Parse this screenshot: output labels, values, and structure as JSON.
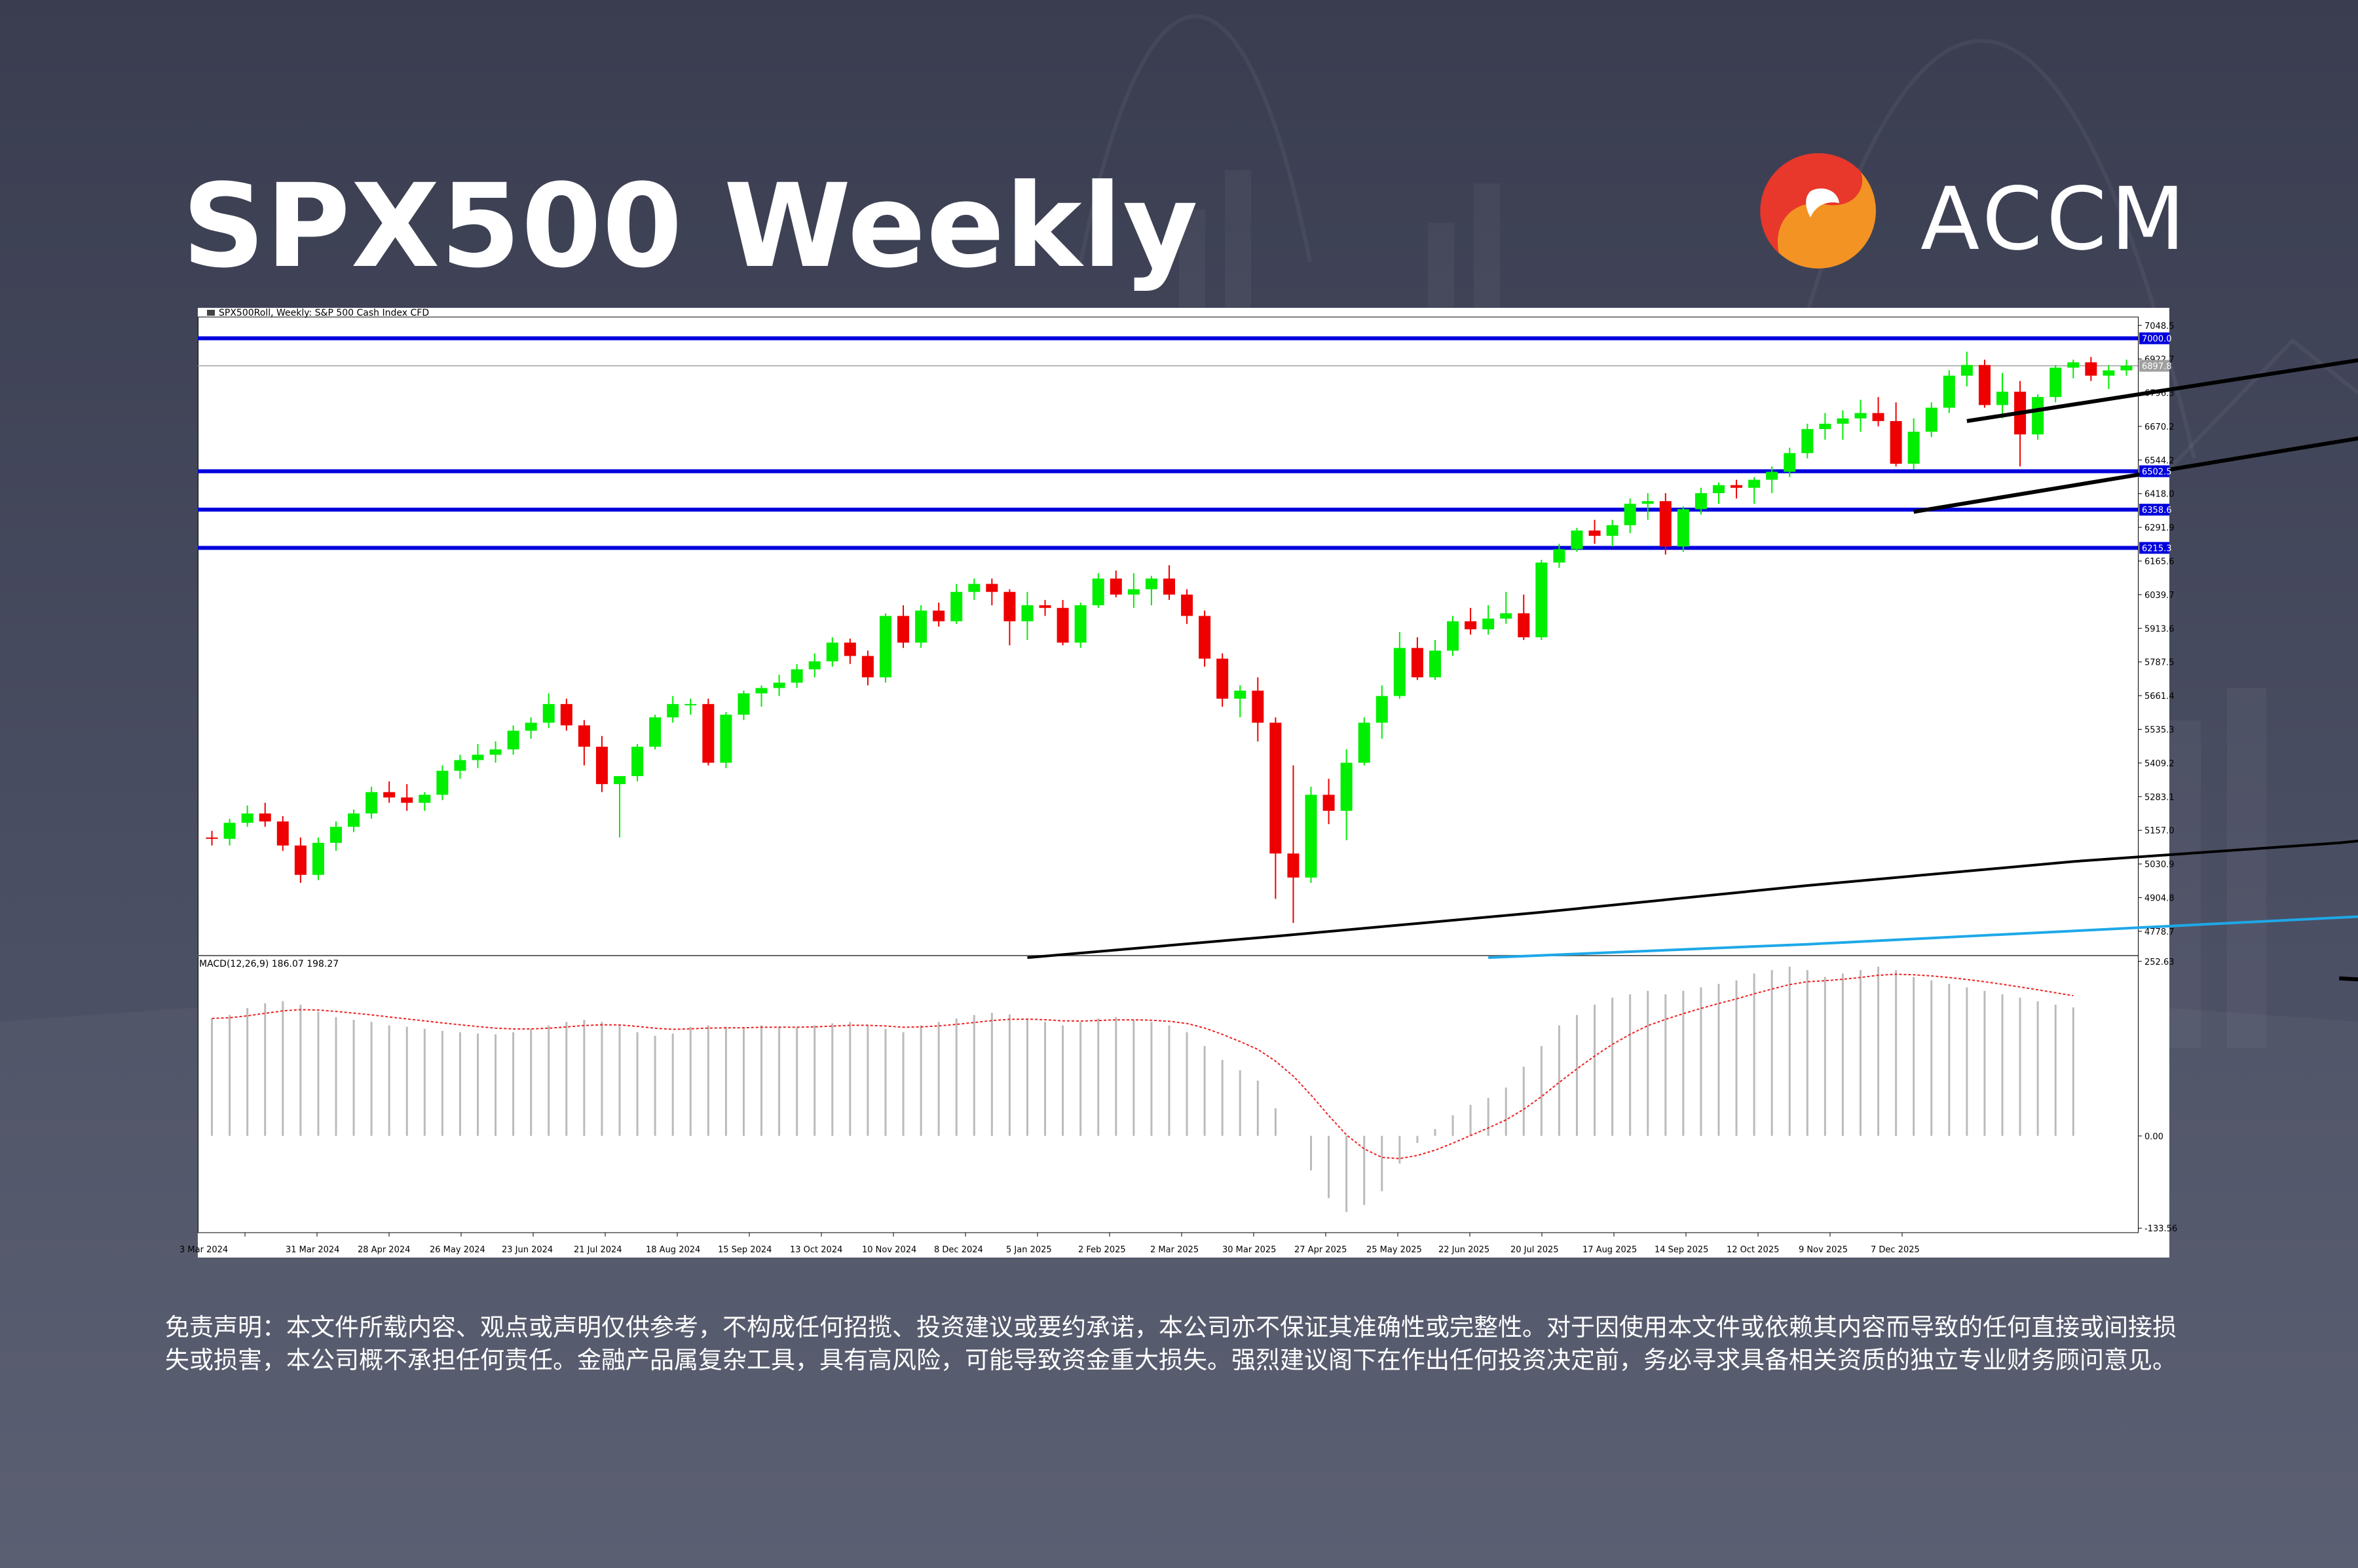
{
  "title": "SPX500 Weekly",
  "brand": {
    "name": "ACCM",
    "colors": {
      "red": "#e8372b",
      "orange": "#f39323"
    }
  },
  "chart_header": "SPX500Roll, Weekly:  S&P 500 Cash Index CFD",
  "macd_header": "MACD(12,26,9) 186.07 198.27",
  "colors": {
    "bull": "#00ee00",
    "bear": "#ee0000",
    "level_line": "#0000dd",
    "ma_long": "#000000",
    "ma_longer": "#1ea8e8",
    "signal": "#ee2222",
    "histogram": "#bbbbbb"
  },
  "chart_data": {
    "type": "candlestick",
    "price_axis": {
      "ylim": [
        4690,
        7070
      ],
      "ticks": [
        "7048.5",
        "6922.7",
        "6796.3",
        "6670.2",
        "6544.2",
        "6418.0",
        "6291.9",
        "6165.6",
        "6039.7",
        "5913.6",
        "5787.5",
        "5661.4",
        "5535.3",
        "5409.2",
        "5283.1",
        "5157.0",
        "5030.9",
        "4904.8",
        "4778.7"
      ]
    },
    "x_axis_labels": [
      "3 Mar 2024",
      "31 Mar 2024",
      "28 Apr 2024",
      "26 May 2024",
      "23 Jun 2024",
      "21 Jul 2024",
      "18 Aug 2024",
      "15 Sep 2024",
      "13 Oct 2024",
      "10 Nov 2024",
      "8 Dec 2024",
      "5 Jan 2025",
      "2 Feb 2025",
      "2 Mar 2025",
      "30 Mar 2025",
      "27 Apr 2025",
      "25 May 2025",
      "22 Jun 2025",
      "20 Jul 2025",
      "17 Aug 2025",
      "14 Sep 2025",
      "12 Oct 2025",
      "9 Nov 2025",
      "7 Dec 2025"
    ],
    "horizontal_levels": [
      {
        "value": 7000,
        "label": "7000.0"
      },
      {
        "value": 6502,
        "label": "6502.5"
      },
      {
        "value": 6358,
        "label": "6358.6"
      },
      {
        "value": 6215,
        "label": "6215.3"
      }
    ],
    "current_price": {
      "value": 6897,
      "label": "6897.8"
    },
    "ohlc": [
      [
        5130,
        5155,
        5100,
        5125
      ],
      [
        5125,
        5200,
        5100,
        5185
      ],
      [
        5185,
        5250,
        5170,
        5220
      ],
      [
        5220,
        5260,
        5170,
        5190
      ],
      [
        5190,
        5210,
        5080,
        5100
      ],
      [
        5100,
        5130,
        4960,
        4990
      ],
      [
        4990,
        5130,
        4970,
        5110
      ],
      [
        5110,
        5190,
        5080,
        5170
      ],
      [
        5170,
        5235,
        5150,
        5220
      ],
      [
        5220,
        5320,
        5200,
        5300
      ],
      [
        5300,
        5340,
        5260,
        5280
      ],
      [
        5280,
        5330,
        5230,
        5260
      ],
      [
        5260,
        5300,
        5230,
        5290
      ],
      [
        5290,
        5400,
        5270,
        5380
      ],
      [
        5380,
        5440,
        5350,
        5420
      ],
      [
        5420,
        5480,
        5390,
        5440
      ],
      [
        5440,
        5490,
        5410,
        5460
      ],
      [
        5460,
        5550,
        5440,
        5530
      ],
      [
        5530,
        5580,
        5500,
        5560
      ],
      [
        5560,
        5670,
        5540,
        5630
      ],
      [
        5630,
        5650,
        5530,
        5550
      ],
      [
        5550,
        5570,
        5400,
        5470
      ],
      [
        5470,
        5510,
        5300,
        5330
      ],
      [
        5330,
        5360,
        5130,
        5360
      ],
      [
        5360,
        5480,
        5340,
        5470
      ],
      [
        5470,
        5590,
        5460,
        5580
      ],
      [
        5580,
        5660,
        5560,
        5630
      ],
      [
        5630,
        5650,
        5590,
        5630
      ],
      [
        5630,
        5650,
        5400,
        5410
      ],
      [
        5410,
        5600,
        5390,
        5590
      ],
      [
        5590,
        5680,
        5570,
        5670
      ],
      [
        5670,
        5700,
        5620,
        5690
      ],
      [
        5690,
        5740,
        5660,
        5710
      ],
      [
        5710,
        5780,
        5690,
        5760
      ],
      [
        5760,
        5820,
        5730,
        5790
      ],
      [
        5790,
        5880,
        5770,
        5860
      ],
      [
        5860,
        5875,
        5780,
        5810
      ],
      [
        5810,
        5830,
        5700,
        5730
      ],
      [
        5730,
        5970,
        5710,
        5960
      ],
      [
        5960,
        6000,
        5840,
        5860
      ],
      [
        5860,
        6000,
        5840,
        5980
      ],
      [
        5980,
        6010,
        5920,
        5940
      ],
      [
        5940,
        6080,
        5930,
        6050
      ],
      [
        6050,
        6100,
        6020,
        6080
      ],
      [
        6080,
        6100,
        6000,
        6050
      ],
      [
        6050,
        6060,
        5850,
        5940
      ],
      [
        5940,
        6050,
        5870,
        6000
      ],
      [
        6000,
        6020,
        5960,
        5990
      ],
      [
        5990,
        6020,
        5850,
        5860
      ],
      [
        5860,
        6010,
        5840,
        6000
      ],
      [
        6000,
        6120,
        5990,
        6100
      ],
      [
        6100,
        6130,
        6030,
        6040
      ],
      [
        6040,
        6120,
        5990,
        6060
      ],
      [
        6060,
        6110,
        6000,
        6100
      ],
      [
        6100,
        6150,
        6020,
        6040
      ],
      [
        6040,
        6060,
        5930,
        5960
      ],
      [
        5960,
        5980,
        5770,
        5800
      ],
      [
        5800,
        5820,
        5620,
        5650
      ],
      [
        5650,
        5700,
        5580,
        5680
      ],
      [
        5680,
        5730,
        5490,
        5560
      ],
      [
        5560,
        5580,
        4900,
        5070
      ],
      [
        5070,
        5400,
        4810,
        4980
      ],
      [
        4980,
        5320,
        4960,
        5290
      ],
      [
        5290,
        5350,
        5180,
        5230
      ],
      [
        5230,
        5460,
        5120,
        5410
      ],
      [
        5410,
        5580,
        5400,
        5560
      ],
      [
        5560,
        5700,
        5500,
        5660
      ],
      [
        5660,
        5900,
        5650,
        5840
      ],
      [
        5840,
        5880,
        5720,
        5730
      ],
      [
        5730,
        5870,
        5720,
        5830
      ],
      [
        5830,
        5960,
        5810,
        5940
      ],
      [
        5940,
        5990,
        5890,
        5910
      ],
      [
        5910,
        6000,
        5890,
        5950
      ],
      [
        5950,
        6050,
        5930,
        5970
      ],
      [
        5970,
        6040,
        5870,
        5880
      ],
      [
        5880,
        6170,
        5870,
        6160
      ],
      [
        6160,
        6230,
        6140,
        6210
      ],
      [
        6210,
        6290,
        6200,
        6280
      ],
      [
        6280,
        6320,
        6230,
        6260
      ],
      [
        6260,
        6320,
        6220,
        6300
      ],
      [
        6300,
        6400,
        6270,
        6380
      ],
      [
        6380,
        6420,
        6320,
        6390
      ],
      [
        6390,
        6420,
        6190,
        6220
      ],
      [
        6220,
        6370,
        6200,
        6360
      ],
      [
        6360,
        6440,
        6340,
        6420
      ],
      [
        6420,
        6460,
        6380,
        6450
      ],
      [
        6450,
        6470,
        6400,
        6440
      ],
      [
        6440,
        6480,
        6380,
        6470
      ],
      [
        6470,
        6520,
        6420,
        6500
      ],
      [
        6500,
        6590,
        6480,
        6570
      ],
      [
        6570,
        6680,
        6550,
        6660
      ],
      [
        6660,
        6720,
        6620,
        6680
      ],
      [
        6680,
        6730,
        6620,
        6700
      ],
      [
        6700,
        6770,
        6650,
        6720
      ],
      [
        6720,
        6780,
        6670,
        6690
      ],
      [
        6690,
        6760,
        6520,
        6530
      ],
      [
        6530,
        6700,
        6510,
        6650
      ],
      [
        6650,
        6760,
        6630,
        6740
      ],
      [
        6740,
        6880,
        6720,
        6860
      ],
      [
        6860,
        6950,
        6820,
        6900
      ],
      [
        6900,
        6920,
        6740,
        6750
      ],
      [
        6750,
        6870,
        6700,
        6800
      ],
      [
        6800,
        6840,
        6520,
        6640
      ],
      [
        6640,
        6790,
        6620,
        6780
      ],
      [
        6780,
        6900,
        6760,
        6890
      ],
      [
        6890,
        6920,
        6850,
        6910
      ],
      [
        6910,
        6930,
        6840,
        6860
      ],
      [
        6860,
        6900,
        6810,
        6880
      ],
      [
        6880,
        6920,
        6860,
        6897
      ]
    ],
    "moving_averages": [
      {
        "points": [
          [
            46,
            4680
          ],
          [
            60,
            4760
          ],
          [
            75,
            4850
          ],
          [
            90,
            4950
          ],
          [
            105,
            5040
          ],
          [
            120,
            5110
          ],
          [
            135,
            5210
          ],
          [
            150,
            5320
          ],
          [
            165,
            5420
          ],
          [
            180,
            5550
          ],
          [
            194,
            5710
          ],
          [
            210,
            5830
          ]
        ]
      },
      {
        "points": [
          [
            72,
            4680
          ],
          [
            90,
            4730
          ],
          [
            105,
            4780
          ],
          [
            120,
            4830
          ],
          [
            135,
            4880
          ],
          [
            150,
            4930
          ],
          [
            165,
            4980
          ],
          [
            180,
            5040
          ],
          [
            194,
            5110
          ],
          [
            210,
            5160
          ]
        ]
      }
    ],
    "channel_lines": [
      {
        "from": [
          99,
          6690
        ],
        "to": [
          130,
          7010
        ]
      },
      {
        "from": [
          96,
          6350
        ],
        "to": [
          137,
          6800
        ]
      }
    ],
    "macd": {
      "ylim": [
        -140,
        260
      ],
      "ticks": [
        "252.63",
        "0.00",
        "-133.56"
      ],
      "histogram": [
        170,
        175,
        185,
        192,
        195,
        190,
        180,
        172,
        168,
        165,
        160,
        158,
        155,
        152,
        150,
        148,
        147,
        150,
        155,
        160,
        165,
        168,
        165,
        160,
        150,
        145,
        148,
        158,
        160,
        158,
        157,
        160,
        158,
        157,
        160,
        163,
        165,
        160,
        155,
        150,
        160,
        165,
        170,
        175,
        178,
        176,
        170,
        165,
        160,
        165,
        170,
        172,
        168,
        165,
        160,
        150,
        130,
        110,
        95,
        80,
        40,
        0,
        -50,
        -90,
        -110,
        -100,
        -80,
        -40,
        -10,
        10,
        30,
        45,
        55,
        70,
        100,
        130,
        160,
        175,
        190,
        200,
        205,
        210,
        205,
        210,
        215,
        220,
        225,
        235,
        240,
        245,
        240,
        230,
        235,
        240,
        245,
        240,
        230,
        225,
        220,
        215,
        210,
        205,
        200,
        195,
        190,
        186
      ]
    },
    "macd_divergence_line": {
      "from": [
        120,
        228
      ],
      "to": [
        141,
        200
      ]
    }
  },
  "disclaimer": "免责声明：本文件所载内容、观点或声明仅供参考，不构成任何招揽、投资建议或要约承诺，本公司亦不保证其准确性或完整性。对于因使用本文件或依赖其内容而导致的任何直接或间接损失或损害，本公司概不承担任何责任。金融产品属复杂工具，具有高风险，可能导致资金重大损失。强烈建议阁下在作出任何投资决定前，务必寻求具备相关资质的独立专业财务顾问意见。"
}
